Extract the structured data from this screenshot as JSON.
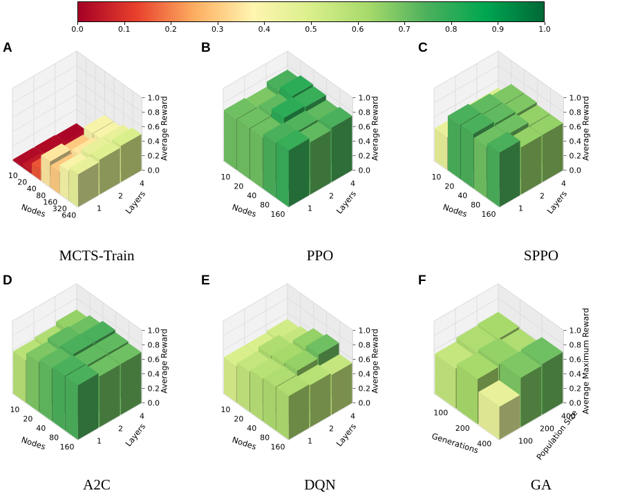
{
  "colorbar": {
    "ticks": [
      "0.0",
      "0.1",
      "0.2",
      "0.3",
      "0.4",
      "0.5",
      "0.6",
      "0.7",
      "0.8",
      "0.9",
      "1.0"
    ],
    "stops": [
      "#a50026",
      "#e8402c",
      "#fdae61",
      "#fff5b0",
      "#d9ef8b",
      "#a6d96a",
      "#4bb05c",
      "#00a651",
      "#006837"
    ]
  },
  "chart_data": [
    {
      "type": "bar3d",
      "panel": "A",
      "title": "MCTS-Train",
      "xlabel": "Nodes",
      "ylabel": "Layers",
      "zlabel": "Average Reward",
      "x": [
        "10",
        "20",
        "40",
        "80",
        "160",
        "320",
        "640"
      ],
      "y": [
        "1",
        "2",
        "4"
      ],
      "zticks": [
        "0.0",
        "0.2",
        "0.4",
        "0.6",
        "0.8",
        "1.0"
      ],
      "zlim": [
        0,
        1
      ],
      "values": [
        [
          0.02,
          0.05,
          0.15,
          0.35,
          0.3,
          0.4,
          0.45
        ],
        [
          0.02,
          0.03,
          0.08,
          0.3,
          0.35,
          0.45,
          0.48
        ],
        [
          0.01,
          0.02,
          0.03,
          0.4,
          0.4,
          0.45,
          0.5
        ]
      ]
    },
    {
      "type": "bar3d",
      "panel": "B",
      "title": "PPO",
      "xlabel": "Nodes",
      "ylabel": "Layers",
      "zlabel": "Average Reward",
      "x": [
        "10",
        "20",
        "40",
        "80",
        "160"
      ],
      "y": [
        "1",
        "2",
        "4"
      ],
      "zticks": [
        "0.0",
        "0.2",
        "0.4",
        "0.6",
        "0.8",
        "1.0"
      ],
      "zlim": [
        0,
        1
      ],
      "values": [
        [
          0.7,
          0.7,
          0.7,
          0.75,
          0.78
        ],
        [
          0.68,
          0.72,
          0.8,
          0.74,
          0.72
        ],
        [
          0.75,
          0.8,
          0.78,
          0.72,
          0.75
        ]
      ]
    },
    {
      "type": "bar3d",
      "panel": "C",
      "title": "SPPO",
      "xlabel": "Nodes",
      "ylabel": "Layers",
      "zlabel": "Average Reward",
      "x": [
        "10",
        "20",
        "40",
        "80",
        "160"
      ],
      "y": [
        "1",
        "2",
        "4"
      ],
      "zticks": [
        "0.0",
        "0.2",
        "0.4",
        "0.6",
        "0.8",
        "1.0"
      ],
      "zlim": [
        0,
        1
      ],
      "values": [
        [
          0.45,
          0.75,
          0.75,
          0.7,
          0.75
        ],
        [
          0.5,
          0.72,
          0.72,
          0.7,
          0.65
        ],
        [
          0.5,
          0.68,
          0.68,
          0.65,
          0.65
        ]
      ]
    },
    {
      "type": "bar3d",
      "panel": "D",
      "title": "A2C",
      "xlabel": "Nodes",
      "ylabel": "Layers",
      "zlabel": "Average Reward",
      "x": [
        "10",
        "20",
        "40",
        "80",
        "160"
      ],
      "y": [
        "1",
        "2",
        "4"
      ],
      "zticks": [
        "0.0",
        "0.2",
        "0.4",
        "0.6",
        "0.8",
        "1.0"
      ],
      "zlim": [
        0,
        1
      ],
      "values": [
        [
          0.58,
          0.68,
          0.72,
          0.75,
          0.75
        ],
        [
          0.6,
          0.72,
          0.75,
          0.72,
          0.7
        ],
        [
          0.65,
          0.7,
          0.75,
          0.72,
          0.7
        ]
      ]
    },
    {
      "type": "bar3d",
      "panel": "E",
      "title": "DQN",
      "xlabel": "Nodes",
      "ylabel": "Layers",
      "zlabel": "Average Reward",
      "x": [
        "10",
        "20",
        "40",
        "80",
        "160"
      ],
      "y": [
        "1",
        "2",
        "4"
      ],
      "zticks": [
        "0.0",
        "0.2",
        "0.4",
        "0.6",
        "0.8",
        "1.0"
      ],
      "zlim": [
        0,
        1
      ],
      "values": [
        [
          0.5,
          0.55,
          0.58,
          0.6,
          0.6
        ],
        [
          0.5,
          0.6,
          0.62,
          0.65,
          0.58
        ],
        [
          0.52,
          0.55,
          0.65,
          0.7,
          0.55
        ]
      ]
    },
    {
      "type": "bar3d",
      "panel": "F",
      "title": "GA",
      "xlabel": "Generations",
      "ylabel": "Population Size",
      "zlabel": "Average Maximum Reward",
      "x": [
        "100",
        "200",
        "400"
      ],
      "y": [
        "100",
        "200",
        "400"
      ],
      "zticks": [
        "0.0",
        "0.2",
        "0.4",
        "0.6",
        "0.8",
        "1.0"
      ],
      "zlim": [
        0,
        1
      ],
      "values": [
        [
          0.55,
          0.62,
          0.45
        ],
        [
          0.6,
          0.65,
          0.68
        ],
        [
          0.62,
          0.6,
          0.7
        ]
      ]
    }
  ]
}
